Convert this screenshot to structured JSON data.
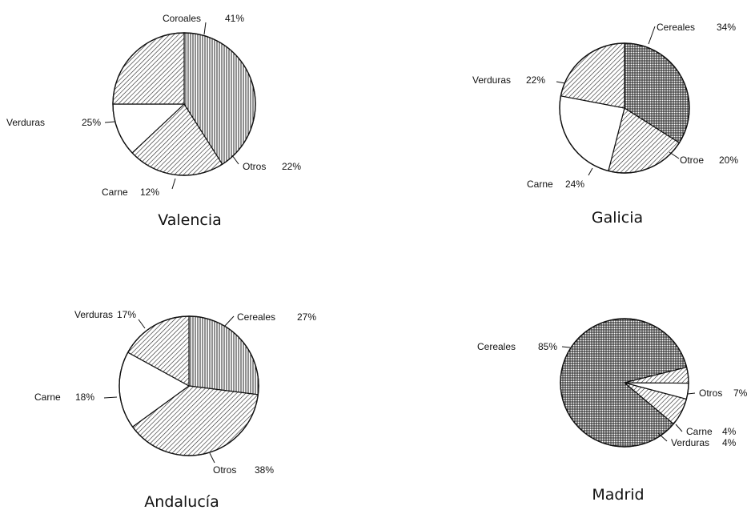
{
  "chart_data": [
    {
      "type": "pie",
      "title": "Valencia",
      "labels": [
        "Coroales",
        "Otros",
        "Carne",
        "Verduras"
      ],
      "values": [
        41,
        22,
        12,
        25
      ],
      "value_labels": [
        "41%",
        "22%",
        "12%",
        "25%"
      ],
      "patterns": [
        "vertical-lines",
        "diagonal-lines",
        "none",
        "diagonal-lines"
      ]
    },
    {
      "type": "pie",
      "title": "Galicia",
      "labels": [
        "Cereales",
        "Otroe",
        "Carne",
        "Verduras"
      ],
      "values": [
        34,
        20,
        24,
        22
      ],
      "value_labels": [
        "34%",
        "20%",
        "24%",
        "22%"
      ],
      "patterns": [
        "grid",
        "diagonal-lines",
        "none",
        "diagonal-lines"
      ]
    },
    {
      "type": "pie",
      "title": "Andalucía",
      "labels": [
        "Cereales",
        "Otros",
        "Carne",
        "Verduras"
      ],
      "values": [
        27,
        38,
        18,
        17
      ],
      "value_labels": [
        "27%",
        "38%",
        "18%",
        "17%"
      ],
      "patterns": [
        "vertical-lines",
        "diagonal-lines",
        "none",
        "diagonal-lines"
      ]
    },
    {
      "type": "pie",
      "title": "Madrid",
      "labels": [
        "Cereales",
        "Otros",
        "Carne",
        "Verduras"
      ],
      "values": [
        85,
        7,
        4,
        4
      ],
      "value_labels": [
        "85%",
        "7%",
        "4%",
        "4%"
      ],
      "patterns": [
        "grid",
        "diagonal-lines",
        "none",
        "diagonal-lines"
      ]
    }
  ]
}
